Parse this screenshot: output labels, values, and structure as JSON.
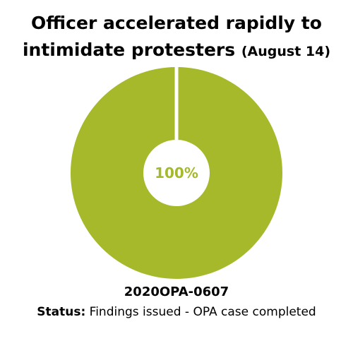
{
  "chart_data": {
    "type": "pie",
    "title": "Officer accelerated rapidly to intimidate protesters",
    "title_note": "(August 14)",
    "values": [
      100
    ],
    "value_labels": [
      "100%"
    ],
    "color": "#a5b92b",
    "donut": true,
    "case_id": "2020OPA-0607",
    "status_label": "Status:",
    "status": "Findings issued - OPA case completed"
  }
}
